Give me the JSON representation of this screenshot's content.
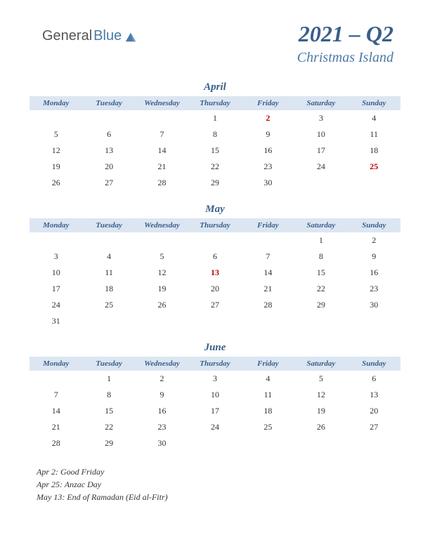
{
  "logo": {
    "text1": "General",
    "text2": "Blue"
  },
  "header": {
    "title": "2021 – Q2",
    "subtitle": "Christmas Island"
  },
  "dayHeaders": [
    "Monday",
    "Tuesday",
    "Wednesday",
    "Thursday",
    "Friday",
    "Saturday",
    "Sunday"
  ],
  "months": [
    {
      "name": "April",
      "weeks": [
        [
          "",
          "",
          "",
          "1",
          "2",
          "3",
          "4"
        ],
        [
          "5",
          "6",
          "7",
          "8",
          "9",
          "10",
          "11"
        ],
        [
          "12",
          "13",
          "14",
          "15",
          "16",
          "17",
          "18"
        ],
        [
          "19",
          "20",
          "21",
          "22",
          "23",
          "24",
          "25"
        ],
        [
          "26",
          "27",
          "28",
          "29",
          "30",
          "",
          ""
        ]
      ],
      "holidays": [
        "2",
        "25"
      ]
    },
    {
      "name": "May",
      "weeks": [
        [
          "",
          "",
          "",
          "",
          "",
          "1",
          "2"
        ],
        [
          "3",
          "4",
          "5",
          "6",
          "7",
          "8",
          "9"
        ],
        [
          "10",
          "11",
          "12",
          "13",
          "14",
          "15",
          "16"
        ],
        [
          "17",
          "18",
          "19",
          "20",
          "21",
          "22",
          "23"
        ],
        [
          "24",
          "25",
          "26",
          "27",
          "28",
          "29",
          "30"
        ],
        [
          "31",
          "",
          "",
          "",
          "",
          "",
          ""
        ]
      ],
      "holidays": [
        "13"
      ]
    },
    {
      "name": "June",
      "weeks": [
        [
          "",
          "1",
          "2",
          "3",
          "4",
          "5",
          "6"
        ],
        [
          "7",
          "8",
          "9",
          "10",
          "11",
          "12",
          "13"
        ],
        [
          "14",
          "15",
          "16",
          "17",
          "18",
          "19",
          "20"
        ],
        [
          "21",
          "22",
          "23",
          "24",
          "25",
          "26",
          "27"
        ],
        [
          "28",
          "29",
          "30",
          "",
          "",
          "",
          ""
        ]
      ],
      "holidays": []
    }
  ],
  "holidayNotes": [
    "Apr 2: Good Friday",
    "Apr 25: Anzac Day",
    "May 13: End of Ramadan (Eid al-Fitr)"
  ],
  "colors": {
    "headerBg": "#dce6f2",
    "titleColor": "#3a5f8a",
    "subtitleColor": "#4a7ba6",
    "holidayColor": "#c00000",
    "textColor": "#333333"
  }
}
